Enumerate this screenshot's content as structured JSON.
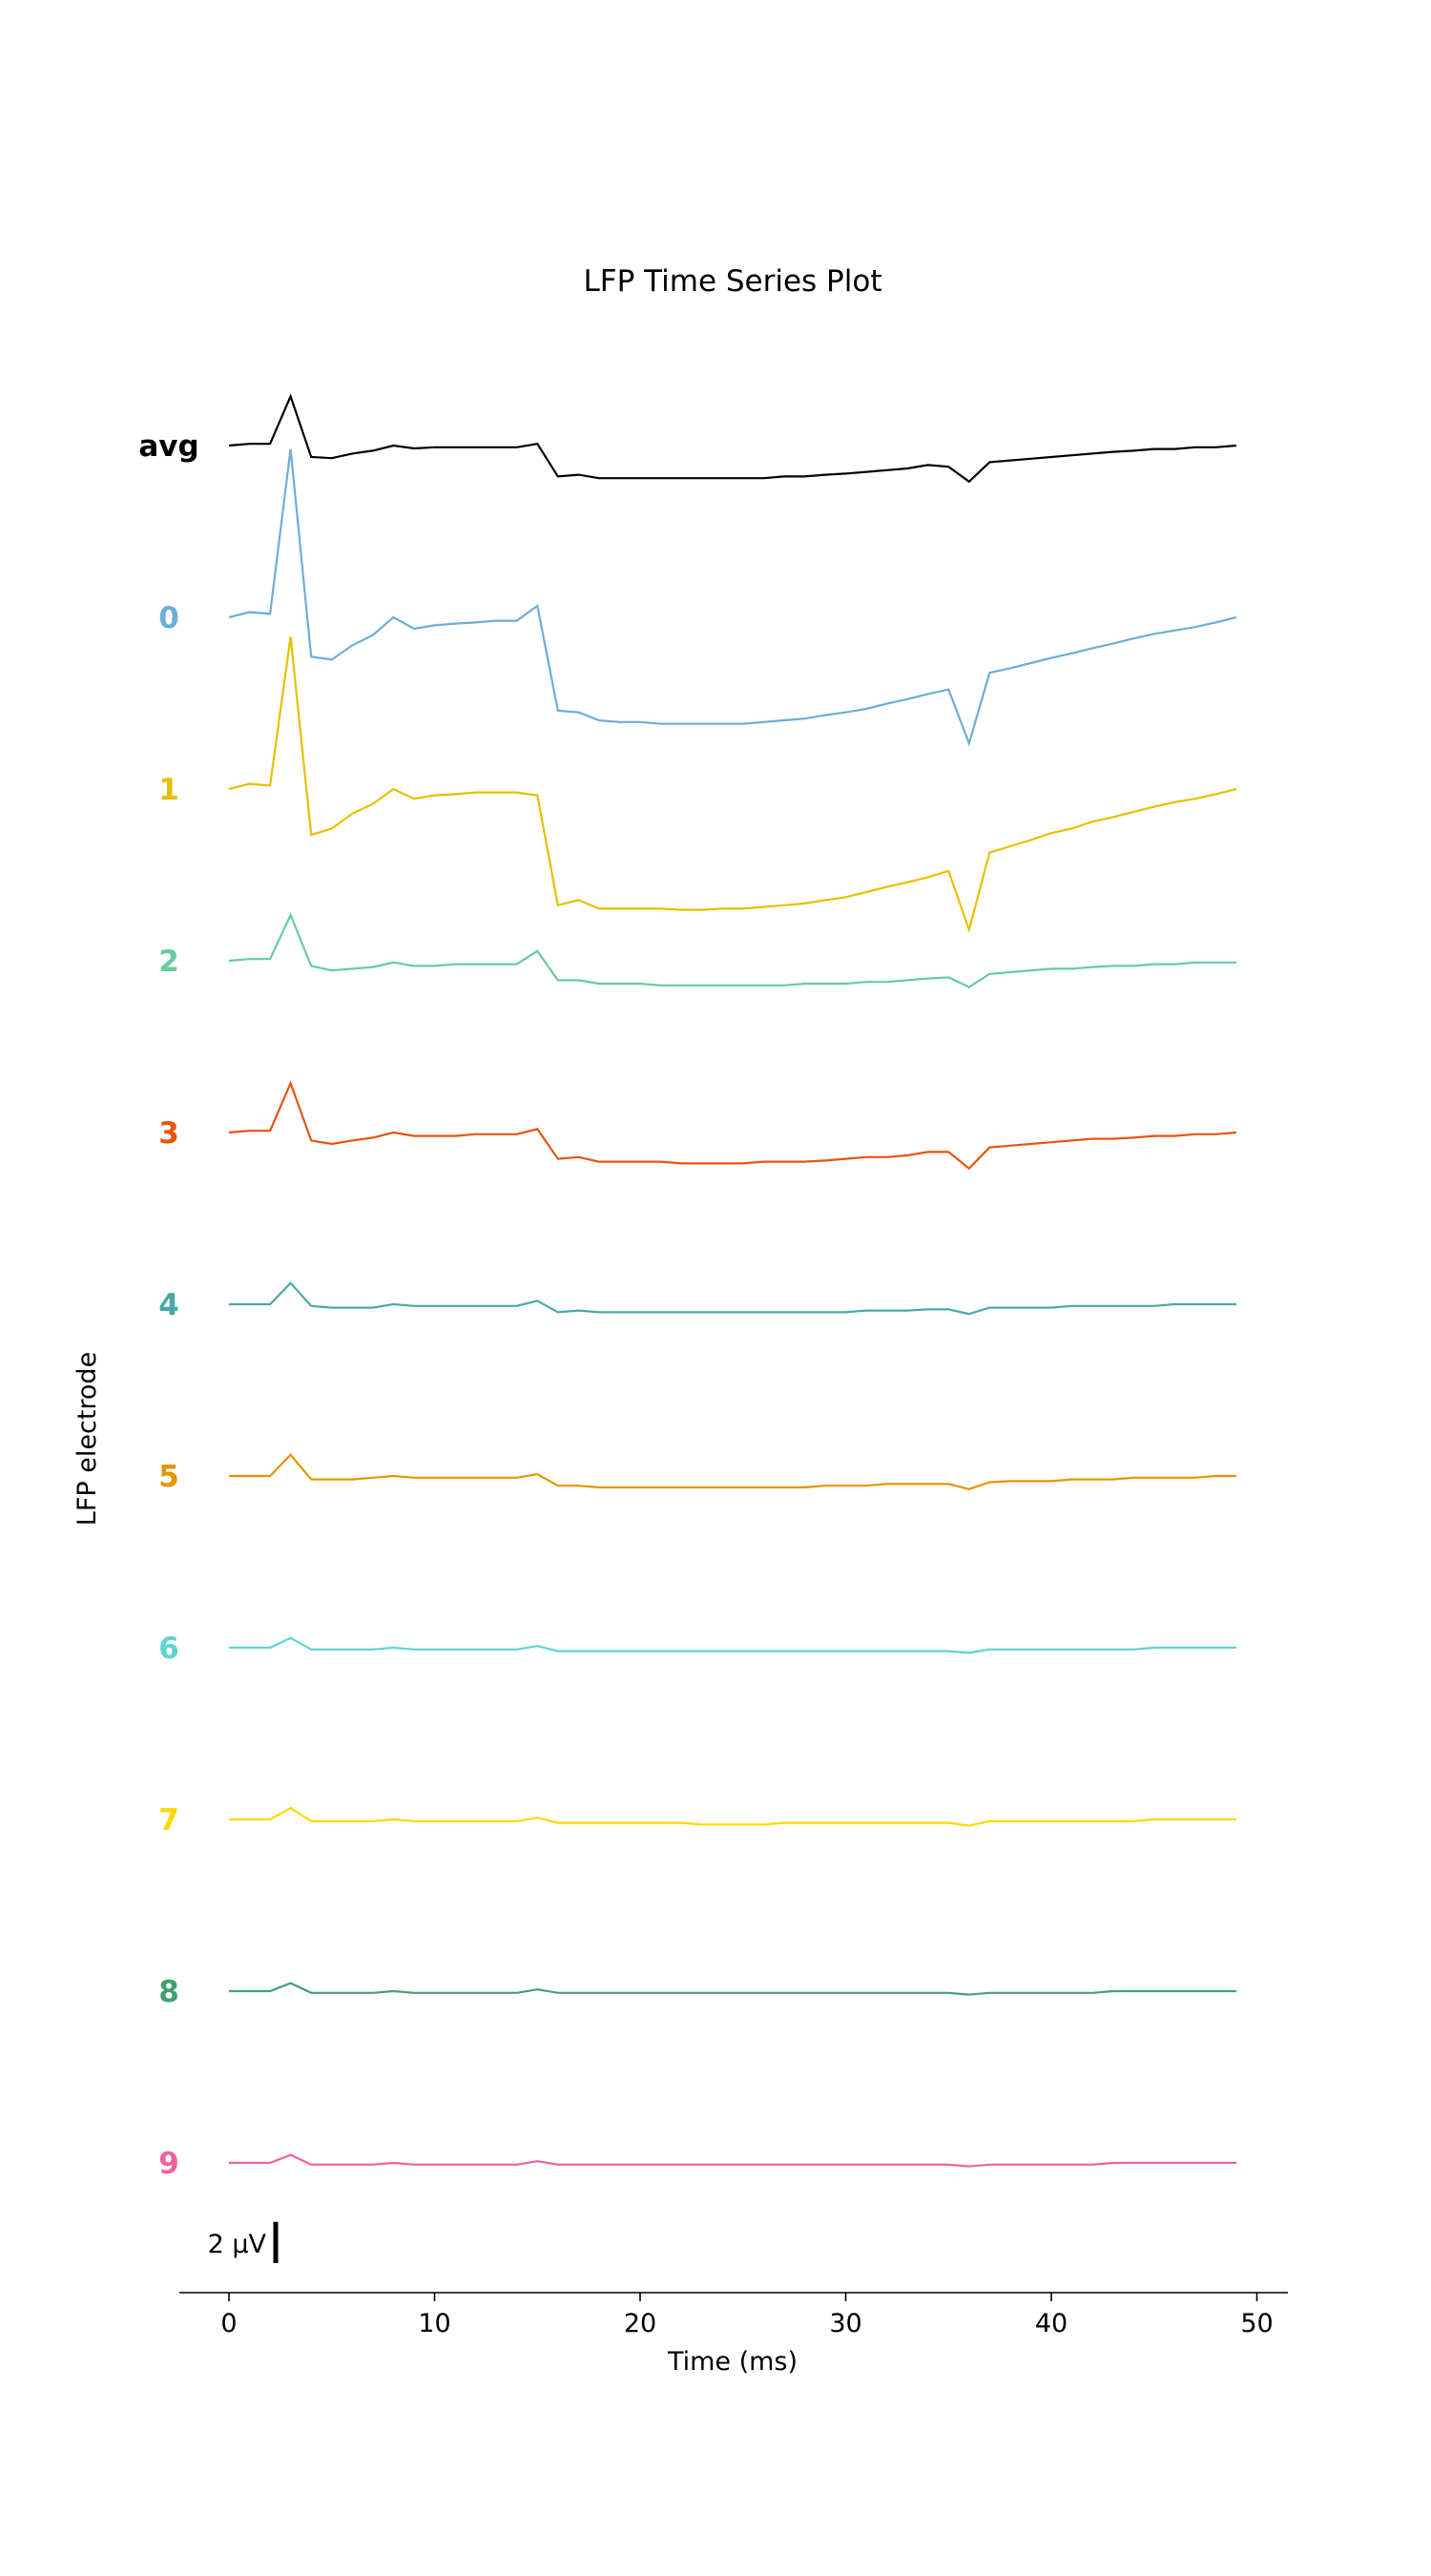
{
  "chart_data": {
    "type": "line",
    "title": "LFP Time Series Plot",
    "xlabel": "Time (ms)",
    "ylabel": "LFP electrode",
    "xlim": [
      -2.4,
      51.5
    ],
    "x_ticks": [
      0,
      10,
      20,
      30,
      40,
      50
    ],
    "grid": false,
    "scale_bar": {
      "label": "2 μV",
      "value": 2,
      "unit": "μV"
    },
    "x": [
      0,
      1,
      2,
      3,
      4,
      5,
      6,
      7,
      8,
      9,
      10,
      11,
      12,
      13,
      14,
      15,
      16,
      17,
      18,
      19,
      20,
      21,
      22,
      23,
      24,
      25,
      26,
      27,
      28,
      29,
      30,
      31,
      32,
      33,
      34,
      35,
      36,
      37,
      38,
      39,
      40,
      41,
      42,
      43,
      44,
      45,
      46,
      47,
      48,
      49
    ],
    "series": [
      {
        "name": "avg",
        "color": "#000000",
        "offset": 0,
        "values": [
          0.0,
          0.03,
          0.03,
          0.86,
          -0.2,
          -0.22,
          -0.14,
          -0.09,
          0.0,
          -0.05,
          -0.03,
          -0.03,
          -0.03,
          -0.03,
          -0.03,
          0.03,
          -0.54,
          -0.51,
          -0.57,
          -0.57,
          -0.57,
          -0.57,
          -0.57,
          -0.57,
          -0.57,
          -0.57,
          -0.57,
          -0.54,
          -0.54,
          -0.51,
          -0.49,
          -0.46,
          -0.43,
          -0.4,
          -0.34,
          -0.37,
          -0.63,
          -0.29,
          -0.26,
          -0.23,
          -0.2,
          -0.17,
          -0.14,
          -0.11,
          -0.09,
          -0.06,
          -0.06,
          -0.03,
          -0.03,
          0.0
        ]
      },
      {
        "name": "0",
        "color": "#6baed6",
        "offset": -3,
        "values": [
          0.0,
          0.09,
          0.06,
          2.94,
          -0.69,
          -0.74,
          -0.49,
          -0.31,
          0.0,
          -0.2,
          -0.14,
          -0.11,
          -0.09,
          -0.06,
          -0.06,
          0.2,
          -1.63,
          -1.66,
          -1.8,
          -1.83,
          -1.83,
          -1.86,
          -1.86,
          -1.86,
          -1.86,
          -1.86,
          -1.83,
          -1.8,
          -1.77,
          -1.71,
          -1.66,
          -1.6,
          -1.51,
          -1.43,
          -1.34,
          -1.26,
          -2.2,
          -0.97,
          -0.89,
          -0.8,
          -0.71,
          -0.63,
          -0.54,
          -0.46,
          -0.37,
          -0.29,
          -0.23,
          -0.17,
          -0.09,
          0.0
        ]
      },
      {
        "name": "1",
        "color": "#e6c000",
        "offset": -6,
        "values": [
          0.0,
          0.09,
          0.06,
          2.66,
          -0.8,
          -0.69,
          -0.43,
          -0.26,
          0.0,
          -0.17,
          -0.11,
          -0.09,
          -0.06,
          -0.06,
          -0.06,
          -0.11,
          -2.03,
          -1.94,
          -2.09,
          -2.09,
          -2.09,
          -2.09,
          -2.11,
          -2.11,
          -2.09,
          -2.09,
          -2.06,
          -2.03,
          -2.0,
          -1.94,
          -1.89,
          -1.8,
          -1.71,
          -1.63,
          -1.54,
          -1.43,
          -2.46,
          -1.11,
          -1.0,
          -0.89,
          -0.77,
          -0.69,
          -0.57,
          -0.49,
          -0.4,
          -0.31,
          -0.23,
          -0.17,
          -0.09,
          0.0
        ]
      },
      {
        "name": "2",
        "color": "#66cc99",
        "offset": -9,
        "values": [
          0.0,
          0.03,
          0.03,
          0.8,
          -0.09,
          -0.17,
          -0.14,
          -0.11,
          -0.03,
          -0.09,
          -0.09,
          -0.06,
          -0.06,
          -0.06,
          -0.06,
          0.17,
          -0.34,
          -0.34,
          -0.4,
          -0.4,
          -0.4,
          -0.43,
          -0.43,
          -0.43,
          -0.43,
          -0.43,
          -0.43,
          -0.43,
          -0.4,
          -0.4,
          -0.4,
          -0.37,
          -0.37,
          -0.34,
          -0.31,
          -0.29,
          -0.46,
          -0.23,
          -0.2,
          -0.17,
          -0.14,
          -0.14,
          -0.11,
          -0.09,
          -0.09,
          -0.06,
          -0.06,
          -0.03,
          -0.03,
          -0.03
        ]
      },
      {
        "name": "3",
        "color": "#e6550d",
        "offset": -12,
        "values": [
          0.0,
          0.03,
          0.03,
          0.86,
          -0.14,
          -0.2,
          -0.14,
          -0.09,
          0.0,
          -0.06,
          -0.06,
          -0.06,
          -0.03,
          -0.03,
          -0.03,
          0.06,
          -0.46,
          -0.43,
          -0.51,
          -0.51,
          -0.51,
          -0.51,
          -0.54,
          -0.54,
          -0.54,
          -0.54,
          -0.51,
          -0.51,
          -0.51,
          -0.49,
          -0.46,
          -0.43,
          -0.43,
          -0.4,
          -0.34,
          -0.34,
          -0.63,
          -0.26,
          -0.23,
          -0.2,
          -0.17,
          -0.14,
          -0.11,
          -0.11,
          -0.09,
          -0.06,
          -0.06,
          -0.03,
          -0.03,
          0.0
        ]
      },
      {
        "name": "4",
        "color": "#4aa8a8",
        "offset": -15,
        "values": [
          0.0,
          0.0,
          0.0,
          0.37,
          -0.03,
          -0.06,
          -0.06,
          -0.06,
          0.0,
          -0.03,
          -0.03,
          -0.03,
          -0.03,
          -0.03,
          -0.03,
          0.06,
          -0.14,
          -0.11,
          -0.14,
          -0.14,
          -0.14,
          -0.14,
          -0.14,
          -0.14,
          -0.14,
          -0.14,
          -0.14,
          -0.14,
          -0.14,
          -0.14,
          -0.14,
          -0.11,
          -0.11,
          -0.11,
          -0.09,
          -0.09,
          -0.17,
          -0.06,
          -0.06,
          -0.06,
          -0.06,
          -0.03,
          -0.03,
          -0.03,
          -0.03,
          -0.03,
          0.0,
          0.0,
          0.0,
          0.0
        ]
      },
      {
        "name": "5",
        "color": "#e69500",
        "offset": -18,
        "values": [
          0.0,
          0.0,
          0.0,
          0.37,
          -0.06,
          -0.06,
          -0.06,
          -0.03,
          0.0,
          -0.03,
          -0.03,
          -0.03,
          -0.03,
          -0.03,
          -0.03,
          0.03,
          -0.17,
          -0.17,
          -0.2,
          -0.2,
          -0.2,
          -0.2,
          -0.2,
          -0.2,
          -0.2,
          -0.2,
          -0.2,
          -0.2,
          -0.2,
          -0.17,
          -0.17,
          -0.17,
          -0.14,
          -0.14,
          -0.14,
          -0.14,
          -0.23,
          -0.11,
          -0.09,
          -0.09,
          -0.09,
          -0.06,
          -0.06,
          -0.06,
          -0.03,
          -0.03,
          -0.03,
          -0.03,
          0.0,
          0.0
        ]
      },
      {
        "name": "6",
        "color": "#5fd3d3",
        "offset": -21,
        "values": [
          0.0,
          0.0,
          0.0,
          0.17,
          -0.03,
          -0.03,
          -0.03,
          -0.03,
          0.0,
          -0.03,
          -0.03,
          -0.03,
          -0.03,
          -0.03,
          -0.03,
          0.03,
          -0.06,
          -0.06,
          -0.06,
          -0.06,
          -0.06,
          -0.06,
          -0.06,
          -0.06,
          -0.06,
          -0.06,
          -0.06,
          -0.06,
          -0.06,
          -0.06,
          -0.06,
          -0.06,
          -0.06,
          -0.06,
          -0.06,
          -0.06,
          -0.09,
          -0.03,
          -0.03,
          -0.03,
          -0.03,
          -0.03,
          -0.03,
          -0.03,
          -0.03,
          0.0,
          0.0,
          0.0,
          0.0,
          0.0
        ]
      },
      {
        "name": "7",
        "color": "#ffd700",
        "offset": -24,
        "values": [
          0.0,
          0.0,
          0.0,
          0.2,
          -0.03,
          -0.03,
          -0.03,
          -0.03,
          0.0,
          -0.03,
          -0.03,
          -0.03,
          -0.03,
          -0.03,
          -0.03,
          0.03,
          -0.06,
          -0.06,
          -0.06,
          -0.06,
          -0.06,
          -0.06,
          -0.06,
          -0.09,
          -0.09,
          -0.09,
          -0.09,
          -0.06,
          -0.06,
          -0.06,
          -0.06,
          -0.06,
          -0.06,
          -0.06,
          -0.06,
          -0.06,
          -0.11,
          -0.03,
          -0.03,
          -0.03,
          -0.03,
          -0.03,
          -0.03,
          -0.03,
          -0.03,
          0.0,
          0.0,
          0.0,
          0.0,
          0.0
        ]
      },
      {
        "name": "8",
        "color": "#41a070",
        "offset": -27,
        "values": [
          0.0,
          0.0,
          0.0,
          0.14,
          -0.03,
          -0.03,
          -0.03,
          -0.03,
          0.0,
          -0.03,
          -0.03,
          -0.03,
          -0.03,
          -0.03,
          -0.03,
          0.03,
          -0.03,
          -0.03,
          -0.03,
          -0.03,
          -0.03,
          -0.03,
          -0.03,
          -0.03,
          -0.03,
          -0.03,
          -0.03,
          -0.03,
          -0.03,
          -0.03,
          -0.03,
          -0.03,
          -0.03,
          -0.03,
          -0.03,
          -0.03,
          -0.06,
          -0.03,
          -0.03,
          -0.03,
          -0.03,
          -0.03,
          -0.03,
          0.0,
          0.0,
          0.0,
          0.0,
          0.0,
          0.0,
          0.0
        ]
      },
      {
        "name": "9",
        "color": "#f0609e",
        "offset": -30,
        "values": [
          0.0,
          0.0,
          0.0,
          0.14,
          -0.03,
          -0.03,
          -0.03,
          -0.03,
          0.0,
          -0.03,
          -0.03,
          -0.03,
          -0.03,
          -0.03,
          -0.03,
          0.03,
          -0.03,
          -0.03,
          -0.03,
          -0.03,
          -0.03,
          -0.03,
          -0.03,
          -0.03,
          -0.03,
          -0.03,
          -0.03,
          -0.03,
          -0.03,
          -0.03,
          -0.03,
          -0.03,
          -0.03,
          -0.03,
          -0.03,
          -0.03,
          -0.06,
          -0.03,
          -0.03,
          -0.03,
          -0.03,
          -0.03,
          -0.03,
          0.0,
          0.0,
          0.0,
          0.0,
          0.0,
          0.0,
          0.0
        ]
      }
    ]
  }
}
